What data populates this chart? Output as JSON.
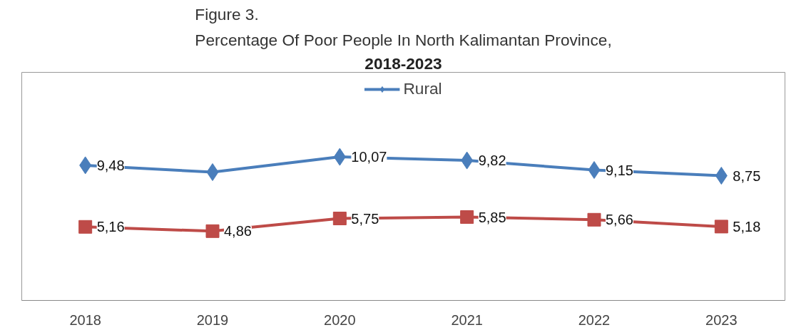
{
  "chart_data": {
    "type": "line",
    "title": "Figure 3.\nPercentage Of Poor People In North Kalimantan Province,",
    "subtitle": "2018-2023",
    "categories": [
      "2018",
      "2019",
      "2020",
      "2021",
      "2022",
      "2023"
    ],
    "ylim": [
      0,
      16
    ],
    "tick_labels": "x",
    "grid": false,
    "legend": "top",
    "series": [
      {
        "name": "Rural",
        "color": "#4a7ebb",
        "marker": "diamond",
        "values": [
          9.48,
          9.0,
          10.07,
          9.82,
          9.15,
          8.75
        ],
        "value_labels": [
          "9,48",
          null,
          "10,07",
          "9,82",
          "9,15",
          "8,75"
        ]
      },
      {
        "color": "#be4b48",
        "marker": "square",
        "values": [
          5.16,
          4.86,
          5.75,
          5.85,
          5.66,
          5.18
        ],
        "value_labels": [
          "5,16",
          "4,86",
          "5,75",
          "5,85",
          "5,66",
          "5,18"
        ]
      }
    ]
  }
}
